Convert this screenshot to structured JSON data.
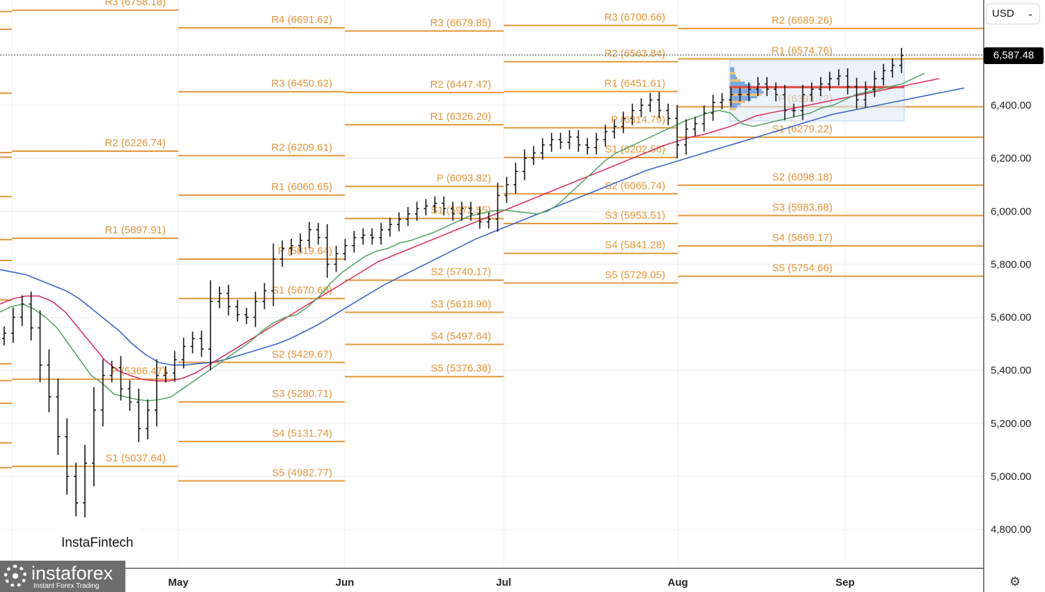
{
  "toolbar": {
    "currency": "USD"
  },
  "last_price": "6,587.48",
  "brand": {
    "watermark": "InstaFintech",
    "logo_name": "instaforex",
    "logo_tagline": "Instant Forex Trading"
  },
  "icons": {
    "settings": "gear-settings-icon",
    "currency_dropdown": "chevron-down-icon",
    "logo": "gear-logo-icon"
  },
  "colors": {
    "pivot": "#e2963a",
    "bars": "#111111",
    "sma_fast": "#5aa66a",
    "sma_mid": "#d9345e",
    "sma_slow": "#3a66c8",
    "vp_red": "#e0443a"
  },
  "chart_data": {
    "type": "ohlc",
    "y_ticks": [
      "4,800.00",
      "5,000.00",
      "5,200.00",
      "5,400.00",
      "5,600.00",
      "5,800.00",
      "6,000.00",
      "6,200.00",
      "6,400.00"
    ],
    "y_tick_values": [
      4800,
      5000,
      5200,
      5400,
      5600,
      5800,
      6000,
      6200,
      6400
    ],
    "x_ticks": [
      "May",
      "Jun",
      "Jul",
      "Aug",
      "Sep"
    ],
    "pivot_periods": [
      {
        "levels": [
          {
            "label": "R3 (6758.18)",
            "value": 6758.18
          },
          {
            "label": "R2 (6226.74)",
            "value": 6226.74
          },
          {
            "label": "R1 (5897.91)",
            "value": 5897.91
          },
          {
            "label": "P (5366.47)",
            "value": 5366.47
          },
          {
            "label": "S1 (5037.64)",
            "value": 5037.64
          }
        ]
      },
      {
        "levels": [
          {
            "label": "R4 (6691.62)",
            "value": 6691.62
          },
          {
            "label": "R3 (6450.62)",
            "value": 6450.62
          },
          {
            "label": "R2 (6209.61)",
            "value": 6209.61
          },
          {
            "label": "R1 (6060.65)",
            "value": 6060.65
          },
          {
            "label": "P (5819.64)",
            "value": 5819.64
          },
          {
            "label": "S1 (5670.68)",
            "value": 5670.68
          },
          {
            "label": "S2 (5429.67)",
            "value": 5429.67
          },
          {
            "label": "S3 (5280.71)",
            "value": 5280.71
          },
          {
            "label": "S4 (5131.74)",
            "value": 5131.74
          },
          {
            "label": "S5 (4982.77)",
            "value": 4982.77
          }
        ]
      },
      {
        "levels": [
          {
            "label": "R3 (6679.85)",
            "value": 6679.85
          },
          {
            "label": "R2 (6447.47)",
            "value": 6447.47
          },
          {
            "label": "R1 (6326.20)",
            "value": 6326.2
          },
          {
            "label": "P (6093.82)",
            "value": 6093.82
          },
          {
            "label": "S1 (5972.55)",
            "value": 5972.55
          },
          {
            "label": "S2 (5740.17)",
            "value": 5740.17
          },
          {
            "label": "S3 (5618.90)",
            "value": 5618.9
          },
          {
            "label": "S4 (5497.64)",
            "value": 5497.64
          },
          {
            "label": "S5 (5376.38)",
            "value": 5376.38
          }
        ]
      },
      {
        "levels": [
          {
            "label": "R3 (6700.66)",
            "value": 6700.66
          },
          {
            "label": "R2 (6563.84)",
            "value": 6563.84
          },
          {
            "label": "R1 (6451.61)",
            "value": 6451.61
          },
          {
            "label": "P (6314.79)",
            "value": 6314.79
          },
          {
            "label": "S1 (6202.56)",
            "value": 6202.56
          },
          {
            "label": "S2 (6065.74)",
            "value": 6065.74
          },
          {
            "label": "S3 (5953.51)",
            "value": 5953.51
          },
          {
            "label": "S4 (5841.28)",
            "value": 5841.28
          },
          {
            "label": "S5 (5729.05)",
            "value": 5729.05
          }
        ]
      },
      {
        "levels": [
          {
            "label": "R2 (6689.26)",
            "value": 6689.26
          },
          {
            "label": "R1 (6574.76)",
            "value": 6574.76
          },
          {
            "label": "P (6393.72)",
            "value": 6393.72
          },
          {
            "label": "S1 (6279.22)",
            "value": 6279.22
          },
          {
            "label": "S2 (6098.18)",
            "value": 6098.18
          },
          {
            "label": "S3 (5983.68)",
            "value": 5983.68
          },
          {
            "label": "S4 (5869.17)",
            "value": 5869.17
          },
          {
            "label": "S5 (5754.66)",
            "value": 5754.66
          }
        ]
      }
    ],
    "closes": [
      5540,
      5600,
      5650,
      5560,
      5420,
      5300,
      5150,
      5000,
      4900,
      5050,
      5250,
      5380,
      5410,
      5330,
      5280,
      5180,
      5250,
      5380,
      5390,
      5440,
      5490,
      5520,
      5480,
      5660,
      5690,
      5640,
      5610,
      5600,
      5660,
      5700,
      5820,
      5860,
      5870,
      5890,
      5930,
      5900,
      5800,
      5840,
      5870,
      5900,
      5910,
      5900,
      5930,
      5950,
      5970,
      5990,
      6010,
      6020,
      6030,
      6010,
      5990,
      6010,
      5990,
      5960,
      5970,
      6060,
      6100,
      6150,
      6200,
      6220,
      6250,
      6270,
      6260,
      6280,
      6250,
      6240,
      6270,
      6300,
      6320,
      6350,
      6380,
      6400,
      6420,
      6380,
      6350,
      6250,
      6310,
      6330,
      6370,
      6410,
      6420,
      6440,
      6440,
      6460,
      6480,
      6460,
      6440,
      6380,
      6380,
      6440,
      6460,
      6480,
      6500,
      6510,
      6470,
      6420,
      6460,
      6500,
      6530,
      6550,
      6587.48
    ],
    "sma_fast": [
      5620,
      5640,
      5650,
      5630,
      5600,
      5560,
      5500,
      5440,
      5380,
      5350,
      5310,
      5300,
      5290,
      5285,
      5290,
      5300,
      5330,
      5360,
      5390,
      5420,
      5450,
      5480,
      5510,
      5550,
      5580,
      5600,
      5610,
      5640,
      5680,
      5730,
      5770,
      5800,
      5830,
      5850,
      5860,
      5880,
      5890,
      5905,
      5920,
      5940,
      5960,
      5980,
      5990,
      6000,
      6005,
      6000,
      5995,
      5990,
      6000,
      6030,
      6070,
      6110,
      6150,
      6190,
      6220,
      6240,
      6260,
      6280,
      6300,
      6320,
      6340,
      6355,
      6370,
      6380,
      6370,
      6330,
      6320,
      6330,
      6340,
      6350,
      6360,
      6370,
      6390,
      6400,
      6420,
      6440,
      6450,
      6460,
      6470,
      6480,
      6500,
      6520
    ],
    "sma_mid": [
      5650,
      5670,
      5680,
      5680,
      5660,
      5620,
      5560,
      5500,
      5440,
      5400,
      5380,
      5365,
      5360,
      5360,
      5370,
      5390,
      5420,
      5450,
      5480,
      5510,
      5540,
      5570,
      5600,
      5630,
      5660,
      5690,
      5720,
      5750,
      5780,
      5810,
      5830,
      5850,
      5870,
      5890,
      5910,
      5930,
      5950,
      5970,
      5990,
      6010,
      6030,
      6050,
      6070,
      6090,
      6110,
      6130,
      6150,
      6170,
      6190,
      6210,
      6230,
      6250,
      6265,
      6280,
      6290,
      6305,
      6320,
      6340,
      6360,
      6370,
      6380,
      6390,
      6400,
      6410,
      6420,
      6430,
      6440,
      6450,
      6460,
      6470,
      6480,
      6490,
      6500
    ],
    "sma_slow": [
      5780,
      5770,
      5760,
      5740,
      5720,
      5700,
      5670,
      5630,
      5590,
      5550,
      5500,
      5460,
      5430,
      5420,
      5420,
      5425,
      5430,
      5440,
      5455,
      5470,
      5485,
      5500,
      5520,
      5545,
      5570,
      5600,
      5630,
      5660,
      5690,
      5720,
      5745,
      5770,
      5795,
      5820,
      5845,
      5870,
      5895,
      5915,
      5935,
      5955,
      5975,
      5995,
      6015,
      6035,
      6055,
      6075,
      6095,
      6115,
      6135,
      6155,
      6170,
      6185,
      6200,
      6215,
      6230,
      6245,
      6260,
      6275,
      6290,
      6305,
      6320,
      6335,
      6350,
      6365,
      6375,
      6385,
      6395,
      6405,
      6415,
      6425,
      6435,
      6445,
      6455,
      6465
    ]
  }
}
